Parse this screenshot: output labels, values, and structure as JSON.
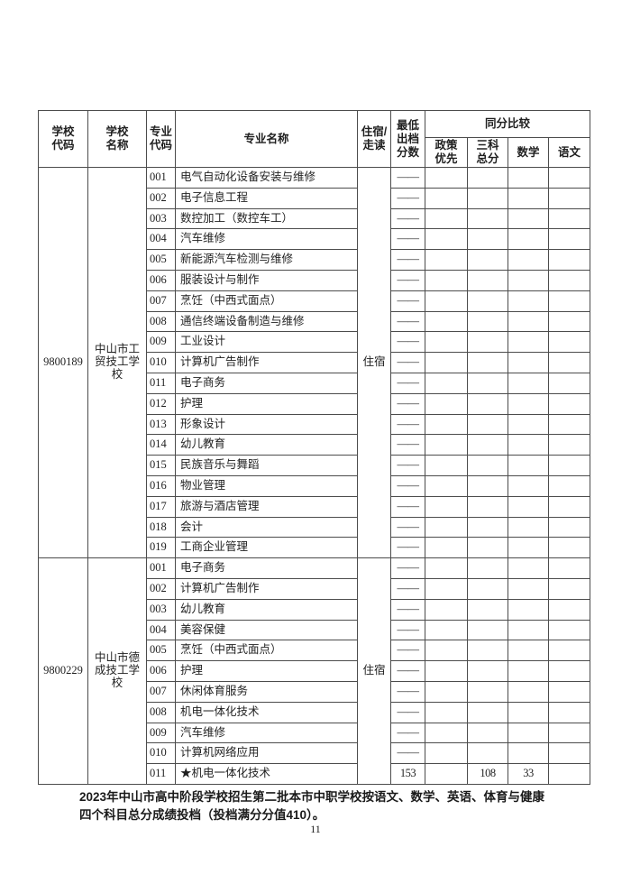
{
  "page": {
    "number": "11"
  },
  "table": {
    "header": {
      "school_code": "学校\n代码",
      "school_name": "学校\n名称",
      "major_code": "专业\n代码",
      "major_name": "专业名称",
      "boarding": "住宿/\n走读",
      "min_score": "最低\n出档\n分数",
      "same_score_compare": "同分比较",
      "policy_priority": "政策\n优先",
      "three_subject_total": "三科\n总分",
      "math": "数学",
      "chinese": "语文"
    },
    "sections": [
      {
        "school_code": "9800189",
        "school_name": "中山市工贸技工学校",
        "boarding": "住宿",
        "rows": [
          {
            "code": "001",
            "major": "电气自动化设备安装与维修",
            "min_score": "——",
            "policy": "",
            "three_total": "",
            "math": "",
            "chinese": ""
          },
          {
            "code": "002",
            "major": "电子信息工程",
            "min_score": "——",
            "policy": "",
            "three_total": "",
            "math": "",
            "chinese": ""
          },
          {
            "code": "003",
            "major": "数控加工（数控车工）",
            "min_score": "——",
            "policy": "",
            "three_total": "",
            "math": "",
            "chinese": ""
          },
          {
            "code": "004",
            "major": "汽车维修",
            "min_score": "——",
            "policy": "",
            "three_total": "",
            "math": "",
            "chinese": ""
          },
          {
            "code": "005",
            "major": "新能源汽车检测与维修",
            "min_score": "——",
            "policy": "",
            "three_total": "",
            "math": "",
            "chinese": ""
          },
          {
            "code": "006",
            "major": "服装设计与制作",
            "min_score": "——",
            "policy": "",
            "three_total": "",
            "math": "",
            "chinese": ""
          },
          {
            "code": "007",
            "major": "烹饪（中西式面点）",
            "min_score": "——",
            "policy": "",
            "three_total": "",
            "math": "",
            "chinese": ""
          },
          {
            "code": "008",
            "major": "通信终端设备制造与维修",
            "min_score": "——",
            "policy": "",
            "three_total": "",
            "math": "",
            "chinese": ""
          },
          {
            "code": "009",
            "major": "工业设计",
            "min_score": "——",
            "policy": "",
            "three_total": "",
            "math": "",
            "chinese": ""
          },
          {
            "code": "010",
            "major": "计算机广告制作",
            "min_score": "——",
            "policy": "",
            "three_total": "",
            "math": "",
            "chinese": ""
          },
          {
            "code": "011",
            "major": "电子商务",
            "min_score": "——",
            "policy": "",
            "three_total": "",
            "math": "",
            "chinese": ""
          },
          {
            "code": "012",
            "major": "护理",
            "min_score": "——",
            "policy": "",
            "three_total": "",
            "math": "",
            "chinese": ""
          },
          {
            "code": "013",
            "major": "形象设计",
            "min_score": "——",
            "policy": "",
            "three_total": "",
            "math": "",
            "chinese": ""
          },
          {
            "code": "014",
            "major": "幼儿教育",
            "min_score": "——",
            "policy": "",
            "three_total": "",
            "math": "",
            "chinese": ""
          },
          {
            "code": "015",
            "major": "民族音乐与舞蹈",
            "min_score": "——",
            "policy": "",
            "three_total": "",
            "math": "",
            "chinese": ""
          },
          {
            "code": "016",
            "major": "物业管理",
            "min_score": "——",
            "policy": "",
            "three_total": "",
            "math": "",
            "chinese": ""
          },
          {
            "code": "017",
            "major": "旅游与酒店管理",
            "min_score": "——",
            "policy": "",
            "three_total": "",
            "math": "",
            "chinese": ""
          },
          {
            "code": "018",
            "major": "会计",
            "min_score": "——",
            "policy": "",
            "three_total": "",
            "math": "",
            "chinese": ""
          },
          {
            "code": "019",
            "major": "工商企业管理",
            "min_score": "——",
            "policy": "",
            "three_total": "",
            "math": "",
            "chinese": ""
          }
        ]
      },
      {
        "school_code": "9800229",
        "school_name": "中山市德成技工学校",
        "boarding": "住宿",
        "rows": [
          {
            "code": "001",
            "major": "电子商务",
            "min_score": "——",
            "policy": "",
            "three_total": "",
            "math": "",
            "chinese": ""
          },
          {
            "code": "002",
            "major": "计算机广告制作",
            "min_score": "——",
            "policy": "",
            "three_total": "",
            "math": "",
            "chinese": ""
          },
          {
            "code": "003",
            "major": "幼儿教育",
            "min_score": "——",
            "policy": "",
            "three_total": "",
            "math": "",
            "chinese": ""
          },
          {
            "code": "004",
            "major": "美容保健",
            "min_score": "——",
            "policy": "",
            "three_total": "",
            "math": "",
            "chinese": ""
          },
          {
            "code": "005",
            "major": "烹饪（中西式面点）",
            "min_score": "——",
            "policy": "",
            "three_total": "",
            "math": "",
            "chinese": ""
          },
          {
            "code": "006",
            "major": "护理",
            "min_score": "——",
            "policy": "",
            "three_total": "",
            "math": "",
            "chinese": ""
          },
          {
            "code": "007",
            "major": "休闲体育服务",
            "min_score": "——",
            "policy": "",
            "three_total": "",
            "math": "",
            "chinese": ""
          },
          {
            "code": "008",
            "major": "机电一体化技术",
            "min_score": "——",
            "policy": "",
            "three_total": "",
            "math": "",
            "chinese": ""
          },
          {
            "code": "009",
            "major": "汽车维修",
            "min_score": "——",
            "policy": "",
            "three_total": "",
            "math": "",
            "chinese": ""
          },
          {
            "code": "010",
            "major": "计算机网络应用",
            "min_score": "——",
            "policy": "",
            "three_total": "",
            "math": "",
            "chinese": ""
          },
          {
            "code": "011",
            "major": "★机电一体化技术",
            "min_score": "153",
            "policy": "",
            "three_total": "108",
            "math": "33",
            "chinese": ""
          }
        ]
      }
    ]
  },
  "footer": {
    "note_lines": [
      "2023年中山市高中阶段学校招生第二批本市中职学校按语文、数学、英语、体育与健康",
      "四个科目总分成绩投档（投档满分分值410）。"
    ]
  }
}
